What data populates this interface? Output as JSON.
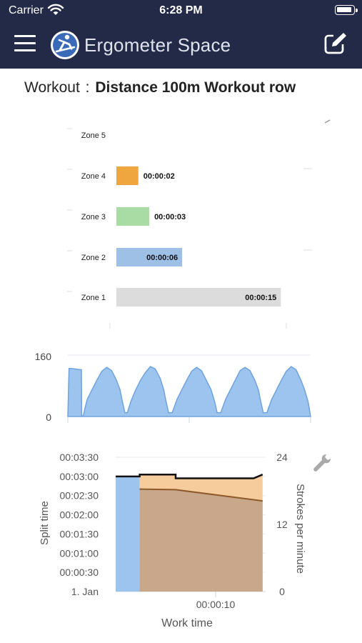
{
  "status_bar": {
    "carrier": "Carrier",
    "time": "6:28 PM"
  },
  "nav": {
    "title": "Ergometer Space",
    "menu_icon": "hamburger-menu-icon",
    "edit_icon": "edit-icon"
  },
  "workout": {
    "label": "Workout",
    "separator": ":",
    "name": "Distance 100m Workout row"
  },
  "colors": {
    "nav_bg": "#232a47",
    "zone4": "#f0a63f",
    "zone3": "#a8dca4",
    "zone2": "#9ec0e6",
    "zone1": "#dcdcdc",
    "area_blue": "#9cc4ee",
    "line_blue": "#6fa3dd",
    "spm_fill": "#f7cc9d",
    "spm_inner": "#c9a78a",
    "spm_line": "#8c5a2b"
  },
  "chart_data": [
    {
      "type": "bar",
      "orientation": "horizontal",
      "categories": [
        "Zone 5",
        "Zone 4",
        "Zone 3",
        "Zone 2",
        "Zone 1"
      ],
      "values": [
        0,
        2,
        3,
        6,
        15
      ],
      "value_labels": [
        "",
        "00:00:02",
        "00:00:03",
        "00:00:06",
        "00:00:15"
      ],
      "xlim": [
        0,
        15.5
      ]
    },
    {
      "type": "area",
      "y_ticks": [
        "160",
        "0"
      ],
      "ylim": [
        0,
        160
      ],
      "x": [
        0,
        0.05,
        0.15,
        0.5,
        0.56,
        0.57,
        0.6,
        0.65,
        0.7,
        0.8,
        1.0,
        1.2,
        1.4,
        1.6,
        1.8,
        2.0,
        2.15,
        2.25,
        2.35,
        2.45,
        2.6,
        2.8,
        3.0,
        3.2,
        3.4,
        3.6,
        3.8,
        3.95,
        4.05,
        4.15,
        4.3,
        4.5,
        4.7,
        4.9,
        5.1,
        5.3,
        5.5,
        5.7,
        5.9,
        6.05,
        6.15,
        6.3,
        6.5,
        6.7,
        6.9,
        7.1,
        7.3,
        7.5,
        7.7,
        7.85,
        7.95,
        8.05,
        8.2,
        8.4,
        8.6,
        8.8,
        9.0,
        9.2,
        9.4,
        9.6,
        9.75,
        9.9,
        10.0
      ],
      "values": [
        0,
        125,
        125,
        122,
        122,
        0,
        0,
        5,
        20,
        45,
        70,
        95,
        118,
        128,
        120,
        95,
        70,
        38,
        10,
        10,
        40,
        70,
        95,
        115,
        130,
        124,
        100,
        70,
        38,
        10,
        10,
        45,
        70,
        95,
        118,
        128,
        120,
        95,
        70,
        38,
        10,
        10,
        45,
        70,
        95,
        120,
        128,
        120,
        95,
        70,
        38,
        10,
        10,
        45,
        70,
        95,
        118,
        130,
        122,
        95,
        70,
        38,
        0
      ]
    },
    {
      "type": "area",
      "xlabel": "Work time",
      "ylabel": "Split time",
      "y2label": "Strokes per minute",
      "y_ticks": [
        "00:03:30",
        "00:03:00",
        "00:02:30",
        "00:02:00",
        "00:01:30",
        "00:01:00",
        "00:00:30",
        "1. Jan"
      ],
      "y2_ticks": [
        "24",
        "12",
        "0"
      ],
      "x_ticks": [
        "00:00:10"
      ],
      "x": [
        0,
        1.6,
        1.6,
        4.0,
        4.0,
        9.2,
        9.8
      ],
      "series": [
        {
          "values": [
            3.0,
            3.0,
            3.05,
            3.05,
            2.95,
            2.95,
            3.05
          ]
        },
        {
          "values": [
            null,
            18.3,
            18.3,
            18.2,
            18.2,
            16.4,
            16.2
          ]
        }
      ]
    }
  ]
}
